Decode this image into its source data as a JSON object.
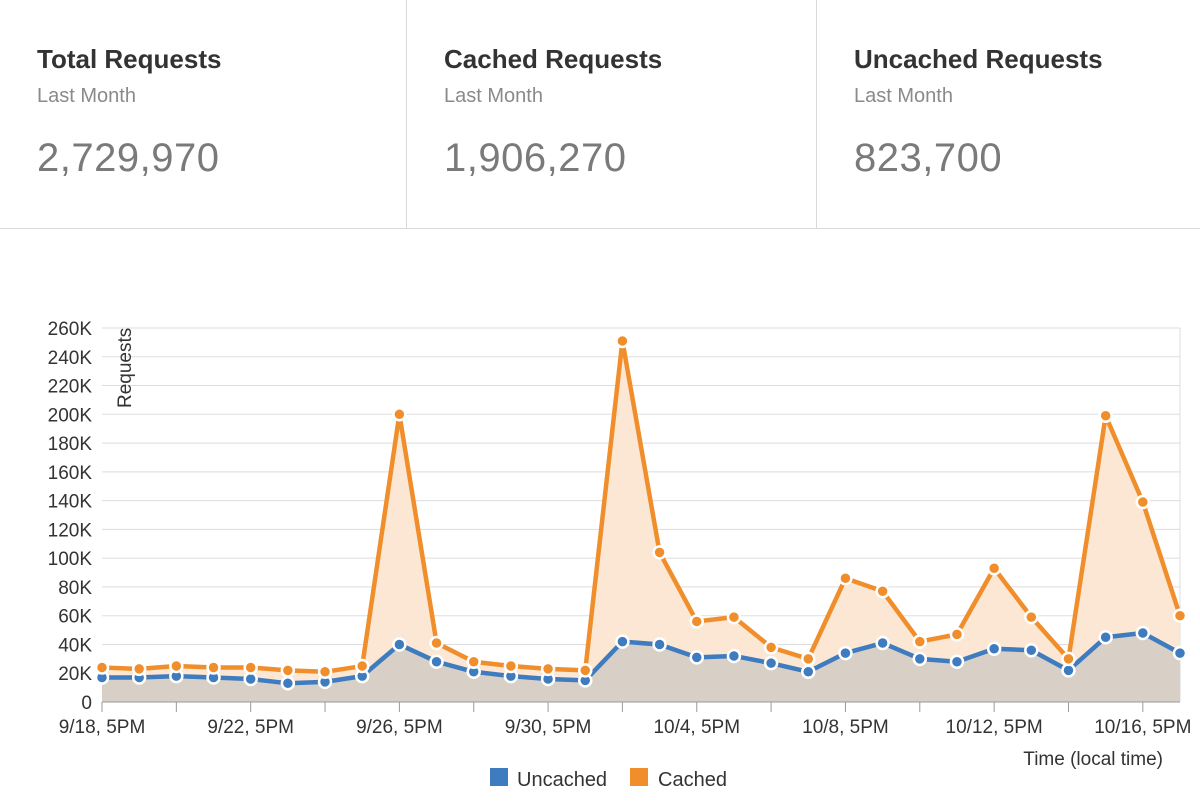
{
  "stats": [
    {
      "title": "Total Requests",
      "subtitle": "Last Month",
      "value": "2,729,970"
    },
    {
      "title": "Cached Requests",
      "subtitle": "Last Month",
      "value": "1,906,270"
    },
    {
      "title": "Uncached Requests",
      "subtitle": "Last Month",
      "value": "823,700"
    }
  ],
  "colors": {
    "uncached": "#3e7bbf",
    "cached": "#f18e2c",
    "uncached_area": "#d8d0c6",
    "cached_area": "#fbe7d3",
    "grid": "#dddddd"
  },
  "chart_data": {
    "type": "area",
    "xlabel": "Time (local time)",
    "ylabel": "Requests",
    "ylim": [
      0,
      260000
    ],
    "yticks": [
      0,
      20000,
      40000,
      60000,
      80000,
      100000,
      120000,
      140000,
      160000,
      180000,
      200000,
      220000,
      240000,
      260000
    ],
    "ytick_labels": [
      "0",
      "20K",
      "40K",
      "60K",
      "80K",
      "100K",
      "120K",
      "140K",
      "160K",
      "180K",
      "200K",
      "220K",
      "240K",
      "260K"
    ],
    "xtick_labels": [
      "9/18, 5PM",
      "9/22, 5PM",
      "9/26, 5PM",
      "9/30, 5PM",
      "10/4, 5PM",
      "10/8, 5PM",
      "10/12, 5PM",
      "10/16, 5PM"
    ],
    "legend": {
      "position": "bottom-center"
    },
    "series": [
      {
        "name": "Uncached",
        "values": [
          17000,
          17000,
          18000,
          17000,
          16000,
          13000,
          14000,
          18000,
          40000,
          28000,
          21000,
          18000,
          16000,
          15000,
          42000,
          40000,
          31000,
          32000,
          27000,
          21000,
          34000,
          41000,
          30000,
          28000,
          37000,
          36000,
          22000,
          45000,
          48000,
          34000
        ]
      },
      {
        "name": "Cached",
        "values": [
          24000,
          23000,
          25000,
          24000,
          24000,
          22000,
          21000,
          25000,
          200000,
          41000,
          28000,
          25000,
          23000,
          22000,
          251000,
          104000,
          56000,
          59000,
          38000,
          30000,
          86000,
          77000,
          42000,
          47000,
          93000,
          59000,
          30000,
          199000,
          139000,
          60000
        ]
      }
    ]
  }
}
